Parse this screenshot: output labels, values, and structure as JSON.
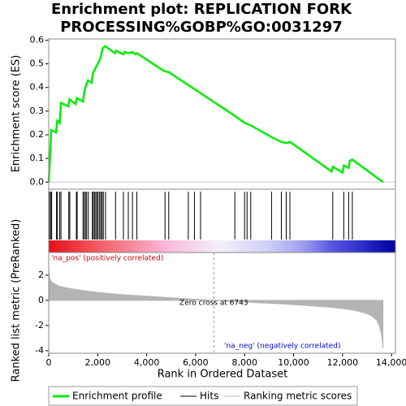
{
  "chart_data": [
    {
      "type": "line",
      "title": [
        "Enrichment plot: REPLICATION FORK",
        "PROCESSING%GOBP%GO:0031297"
      ],
      "y_label": "Enrichment score (ES)",
      "xlim": [
        0,
        14160
      ],
      "ylim": [
        -0.03,
        0.605
      ],
      "yticks": [
        {
          "value": 0,
          "label": "0.0"
        },
        0.1,
        0.2,
        0.3,
        0.4,
        0.5,
        0.6
      ],
      "x": [
        0,
        50,
        80,
        100,
        300,
        350,
        450,
        500,
        800,
        850,
        1100,
        1150,
        1400,
        1450,
        1500,
        1600,
        1750,
        1800,
        1900,
        2000,
        2100,
        2150,
        2200,
        2300,
        2700,
        2750,
        3050,
        3100,
        3300,
        3400,
        3550,
        3600,
        4700,
        4900,
        5700,
        6000,
        7600,
        8000,
        8250,
        9100,
        9500,
        9700,
        9850,
        11550,
        11600,
        12000,
        12050,
        12250,
        12300,
        12400,
        13650
      ],
      "series": [
        {
          "name": "Enrichment profile",
          "color": "#00ee00",
          "values": [
            0,
            0.1,
            0.16,
            0.22,
            0.21,
            0.26,
            0.25,
            0.335,
            0.32,
            0.35,
            0.33,
            0.355,
            0.34,
            0.38,
            0.4,
            0.43,
            0.42,
            0.46,
            0.48,
            0.5,
            0.52,
            0.54,
            0.565,
            0.575,
            0.545,
            0.555,
            0.54,
            0.55,
            0.545,
            0.55,
            0.54,
            0.545,
            0.47,
            0.465,
            0.41,
            0.39,
            0.28,
            0.25,
            0.24,
            0.19,
            0.17,
            0.165,
            0.17,
            0.045,
            0.065,
            0.04,
            0.07,
            0.06,
            0.09,
            0.095,
            0
          ]
        }
      ]
    },
    {
      "type": "hits",
      "name": "Hits",
      "color": "#000000",
      "x": [
        30,
        80,
        120,
        320,
        350,
        450,
        500,
        820,
        860,
        1130,
        1160,
        1400,
        1450,
        1500,
        1550,
        1620,
        1780,
        1820,
        1870,
        1920,
        1970,
        2020,
        2080,
        2130,
        2180,
        2230,
        2320,
        2730,
        3050,
        3250,
        3420,
        3600,
        4750,
        4900,
        5700,
        5950,
        6200,
        7600,
        8000,
        8100,
        8250,
        9100,
        9500,
        9700,
        9850,
        11600,
        12050,
        12250,
        12400
      ]
    },
    {
      "type": "area",
      "y_label": "Ranked list metric (PreRanked)",
      "x_label": "Rank in Ordered Dataset",
      "xlim": [
        0,
        14160
      ],
      "ylim": [
        -4.2,
        3.8
      ],
      "xticks": [
        0,
        {
          "value": 2000,
          "label": "2,000"
        },
        {
          "value": 4000,
          "label": "4,000"
        },
        {
          "value": 6000,
          "label": "6,000"
        },
        {
          "value": 8000,
          "label": "8,000"
        },
        {
          "value": 10000,
          "label": "10,000"
        },
        {
          "value": 12000,
          "label": "12,000"
        },
        {
          "value": 14000,
          "label": "14,000"
        }
      ],
      "yticks": [
        -4,
        -2,
        0,
        2
      ],
      "x": [
        0,
        20,
        50,
        100,
        200,
        400,
        700,
        1000,
        1500,
        2000,
        3000,
        4000,
        5000,
        6000,
        6743,
        7500,
        8500,
        9500,
        10500,
        11500,
        12000,
        12500,
        13000,
        13200,
        13400,
        13500,
        13600,
        13650
      ],
      "series": [
        {
          "name": "Ranking metric scores",
          "color": "#b4b4b4",
          "values": [
            2.6,
            2.0,
            1.7,
            1.5,
            1.35,
            1.15,
            1.0,
            0.9,
            0.75,
            0.63,
            0.45,
            0.33,
            0.2,
            0.08,
            0,
            -0.08,
            -0.18,
            -0.28,
            -0.4,
            -0.55,
            -0.65,
            -0.8,
            -1.05,
            -1.25,
            -1.6,
            -2.0,
            -2.8,
            -3.8
          ]
        }
      ],
      "zero_cross": {
        "label": "Zero cross at 6743",
        "value": 6743
      },
      "pos_label": "'na_pos' (positively correlated)",
      "neg_label": "'na_neg' (negatively correlated)"
    }
  ]
}
